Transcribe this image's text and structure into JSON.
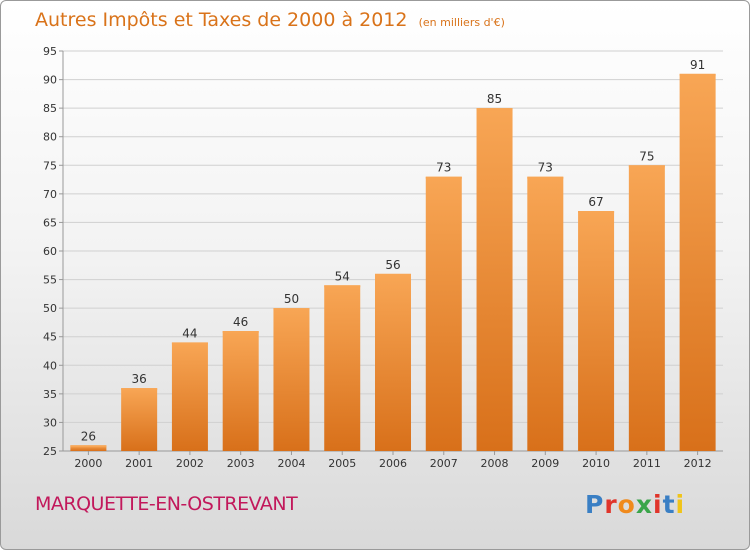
{
  "title": "Autres Impôts et Taxes de 2000 à 2012",
  "unit_note": "(en milliers d'€)",
  "commune": "MARQUETTE-EN-OSTREVANT",
  "logo": {
    "text": "Proxiti",
    "letter_colors": [
      "#3a7fc4",
      "#e0352b",
      "#f08a1c",
      "#3aa54a",
      "#e0352b",
      "#3a7fc4",
      "#f0c419"
    ]
  },
  "colors": {
    "bar": "#f08a24",
    "bar_light": "#f8a655",
    "bar_dark": "#d8701a",
    "grid": "#d0d0d0",
    "title": "#d9731a"
  },
  "chart_data": {
    "type": "bar",
    "categories": [
      "2000",
      "2001",
      "2002",
      "2003",
      "2004",
      "2005",
      "2006",
      "2007",
      "2008",
      "2009",
      "2010",
      "2011",
      "2012"
    ],
    "values": [
      26,
      36,
      44,
      46,
      50,
      54,
      56,
      73,
      85,
      73,
      67,
      75,
      91
    ],
    "data_labels": [
      "26",
      "36",
      "44",
      "46",
      "50",
      "54",
      "56",
      "73",
      "85",
      "73",
      "67",
      "75",
      "91"
    ],
    "title": "Autres Impôts et Taxes de 2000 à 2012",
    "xlabel": "",
    "ylabel": "",
    "ylim": [
      25,
      95
    ],
    "yticks": [
      25,
      30,
      35,
      40,
      45,
      50,
      55,
      60,
      65,
      70,
      75,
      80,
      85,
      90,
      95
    ],
    "grid": true,
    "legend": "none"
  }
}
